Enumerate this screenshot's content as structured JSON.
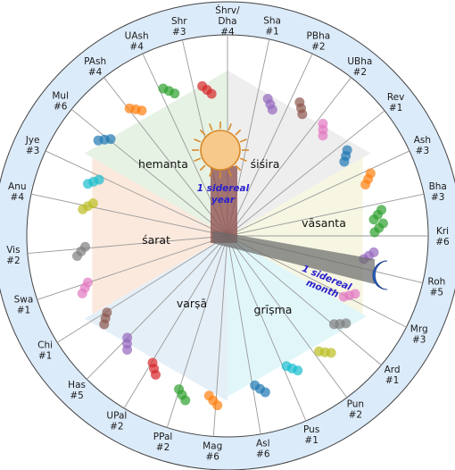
{
  "nakshatras": [
    {
      "l1": "Kri",
      "l2": "#6"
    },
    {
      "l1": "Roh",
      "l2": "#5"
    },
    {
      "l1": "Mrg",
      "l2": "#3"
    },
    {
      "l1": "Ard",
      "l2": "#1"
    },
    {
      "l1": "Pun",
      "l2": "#2"
    },
    {
      "l1": "Pus",
      "l2": "#1"
    },
    {
      "l1": "Asl",
      "l2": "#6"
    },
    {
      "l1": "Mag",
      "l2": "#6"
    },
    {
      "l1": "PPal",
      "l2": "#2"
    },
    {
      "l1": "UPal",
      "l2": "#2"
    },
    {
      "l1": "Has",
      "l2": "#5"
    },
    {
      "l1": "Chi",
      "l2": "#1"
    },
    {
      "l1": "Swa",
      "l2": "#1"
    },
    {
      "l1": "Vis",
      "l2": "#2"
    },
    {
      "l1": "Anu",
      "l2": "#4"
    },
    {
      "l1": "Jye",
      "l2": "#3"
    },
    {
      "l1": "Mul",
      "l2": "#6"
    },
    {
      "l1": "PAsh",
      "l2": "#4"
    },
    {
      "l1": "UAsh",
      "l2": "#4"
    },
    {
      "l1": "Shr",
      "l2": "#3"
    },
    {
      "l1": "Śhrv/",
      "l2": "Dha",
      "l3": "#4"
    },
    {
      "l1": "Sha",
      "l2": "#1"
    },
    {
      "l1": "PBha",
      "l2": "#2"
    },
    {
      "l1": "UBha",
      "l2": "#2"
    },
    {
      "l1": "Rev",
      "l2": "#1"
    },
    {
      "l1": "Ash",
      "l2": "#3"
    },
    {
      "l1": "Bha",
      "l2": "#3"
    }
  ],
  "seasons": [
    "hemanta",
    "śiśira",
    "vāsanta",
    "grīṣma",
    "varṣā",
    "śarat"
  ],
  "annotations": {
    "year": [
      "1 sidereal",
      "year"
    ],
    "month": [
      "1 sidereal",
      "month"
    ]
  },
  "icons": [
    "sun-icon",
    "crescent-moon-icon"
  ],
  "colors": {
    "outer_ring": "#dcebfa",
    "hemanta": "#e3f1e1",
    "sisira": "#ececec",
    "vasanta": "#f5f5e0",
    "grishma": "#def5f8",
    "varsha": "#e2edf6",
    "sarat": "#fbe7d9",
    "moon": "#2a6bd6",
    "sun": "#f7c98a"
  },
  "markers": [
    {
      "ray": "Kri",
      "color": "#2ca02c"
    },
    {
      "ray": "Roh",
      "color": "#9467bd"
    },
    {
      "ray": "Mrg",
      "color": "#e377c2"
    },
    {
      "ray": "Ard",
      "color": "#7f7f7f"
    },
    {
      "ray": "Pun",
      "color": "#bcbd22"
    },
    {
      "ray": "Pus",
      "color": "#17becf"
    },
    {
      "ray": "Asl",
      "color": "#1f77b4"
    },
    {
      "ray": "Mag",
      "color": "#ff7f0e"
    },
    {
      "ray": "PPal",
      "color": "#2ca02c"
    },
    {
      "ray": "UPal",
      "color": "#d62728"
    },
    {
      "ray": "Has",
      "color": "#9467bd"
    },
    {
      "ray": "Chi",
      "color": "#8c564b"
    },
    {
      "ray": "Swa",
      "color": "#e377c2"
    },
    {
      "ray": "Vis",
      "color": "#7f7f7f"
    },
    {
      "ray": "Anu",
      "color": "#bcbd22"
    },
    {
      "ray": "Jye",
      "color": "#17becf"
    },
    {
      "ray": "Mul",
      "color": "#1f77b4"
    },
    {
      "ray": "PAsh",
      "color": "#ff7f0e"
    },
    {
      "ray": "UAsh",
      "color": "#2ca02c"
    },
    {
      "ray": "Dha",
      "color": "#d62728"
    },
    {
      "ray": "Sha",
      "color": "#9467bd"
    },
    {
      "ray": "PBha",
      "color": "#8c564b"
    },
    {
      "ray": "UBha",
      "color": "#e377c2"
    },
    {
      "ray": "Rev",
      "color": "#1f77b4"
    },
    {
      "ray": "Ash",
      "color": "#ff7f0e"
    },
    {
      "ray": "Bha",
      "color": "#2ca02c"
    }
  ]
}
